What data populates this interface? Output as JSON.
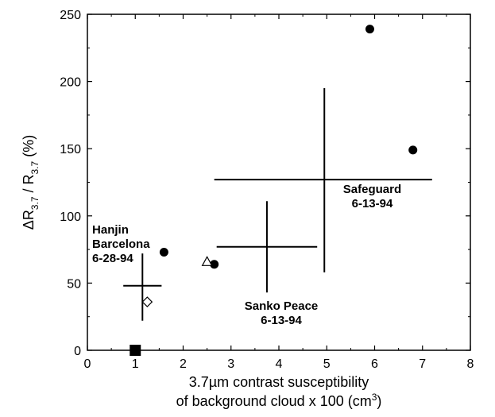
{
  "chart_data": {
    "type": "scatter",
    "title": "",
    "xlabel_line1": "3.7µm contrast susceptibility",
    "xlabel_line2": "of background cloud  x 100  (cm³)",
    "ylabel": "ΔR3.7 / R3.7  (%)",
    "xlim": [
      0,
      8
    ],
    "ylim": [
      0,
      250
    ],
    "xticks": [
      "0",
      "1",
      "2",
      "3",
      "4",
      "5",
      "6",
      "7",
      "8"
    ],
    "yticks": [
      "0",
      "50",
      "100",
      "150",
      "200",
      "250"
    ],
    "grid": false,
    "series": [
      {
        "marker": "filled-circle",
        "points": [
          [
            1.6,
            73
          ],
          [
            2.65,
            64
          ],
          [
            5.9,
            239
          ],
          [
            6.8,
            149
          ]
        ]
      },
      {
        "marker": "open-triangle",
        "points": [
          [
            2.5,
            66
          ]
        ]
      },
      {
        "marker": "open-diamond",
        "points": [
          [
            1.25,
            36
          ]
        ]
      },
      {
        "marker": "filled-square",
        "points": [
          [
            1.0,
            0
          ]
        ]
      }
    ],
    "crosses": [
      {
        "name": "Hanjin Barcelona",
        "x": 1.15,
        "y": 48,
        "x_range": [
          0.75,
          1.55
        ],
        "y_range": [
          22,
          72
        ]
      },
      {
        "name": "Sanko Peace",
        "x": 3.75,
        "y": 77,
        "x_range": [
          2.7,
          4.8
        ],
        "y_range": [
          43,
          111
        ]
      },
      {
        "name": "Safeguard",
        "x": 4.95,
        "y": 127,
        "x_range": [
          2.65,
          7.2
        ],
        "y_range": [
          58,
          195
        ]
      }
    ],
    "annotations": [
      {
        "lines": [
          "Hanjin",
          "Barcelona",
          "6-28-94"
        ],
        "x": 0.1,
        "y": 87,
        "align": "start"
      },
      {
        "lines": [
          "Sanko Peace",
          "6-13-94"
        ],
        "x": 4.05,
        "y": 30,
        "align": "middle"
      },
      {
        "lines": [
          "Safeguard",
          "6-13-94"
        ],
        "x": 5.95,
        "y": 117,
        "align": "middle"
      }
    ]
  }
}
